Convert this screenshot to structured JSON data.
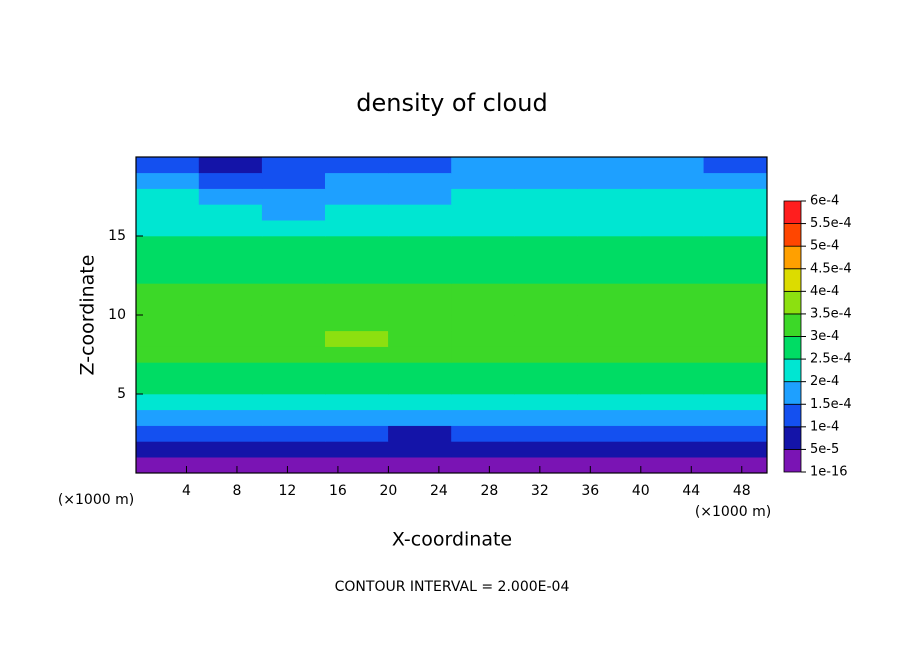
{
  "chart_data": {
    "type": "contour",
    "title": "density of cloud",
    "x_label": "X-coordinate",
    "y_label": "Z-coordinate",
    "y_unit_label": "(×1000 m)",
    "x_unit_label": "(×1000 m)",
    "footer": "CONTOUR INTERVAL = 2.000E-04",
    "xlim": [
      0,
      50
    ],
    "ylim": [
      0,
      20
    ],
    "xticks": [
      4,
      8,
      12,
      16,
      20,
      24,
      28,
      32,
      36,
      40,
      44,
      48
    ],
    "yticks": [
      5,
      10,
      15
    ],
    "x": [
      2.5,
      7.5,
      12.5,
      17.5,
      22.5,
      27.5,
      32.5,
      37.5,
      42.5,
      47.5
    ],
    "y": [
      0.5,
      1.5,
      2.5,
      3.5,
      4.5,
      5.5,
      6.5,
      7.5,
      8.5,
      9.5,
      10.5,
      11.5,
      12.5,
      13.5,
      14.5,
      15.5,
      16.5,
      17.5,
      18.5,
      19.5
    ],
    "z": [
      [
        3e-05,
        3e-05,
        3e-05,
        3e-05,
        3e-05,
        3e-05,
        3e-05,
        3e-05,
        3e-05,
        3e-05
      ],
      [
        7e-05,
        7e-05,
        7e-05,
        7e-05,
        7e-05,
        7e-05,
        7e-05,
        7e-05,
        7e-05,
        7e-05
      ],
      [
        0.00012,
        0.00012,
        0.00011,
        0.0001,
        9e-05,
        0.00011,
        0.00011,
        0.00012,
        0.00011,
        0.00012
      ],
      [
        0.00019,
        0.00018,
        0.00017,
        0.00016,
        0.00017,
        0.00017,
        0.00017,
        0.00018,
        0.00019,
        0.00019
      ],
      [
        0.00023,
        0.00023,
        0.00023,
        0.00023,
        0.00023,
        0.00023,
        0.00023,
        0.00023,
        0.00023,
        0.00023
      ],
      [
        0.00026,
        0.00026,
        0.00026,
        0.00026,
        0.00026,
        0.00026,
        0.00026,
        0.00026,
        0.00026,
        0.00026
      ],
      [
        0.00028,
        0.00028,
        0.00028,
        0.00028,
        0.00028,
        0.00028,
        0.00028,
        0.00028,
        0.00028,
        0.00028
      ],
      [
        0.0003,
        0.0003,
        0.00032,
        0.00033,
        0.00031,
        0.0003,
        0.0003,
        0.0003,
        0.00031,
        0.00031
      ],
      [
        0.00032,
        0.00033,
        0.00034,
        0.00035,
        0.00032,
        0.00031,
        0.00031,
        0.00031,
        0.00032,
        0.00032
      ],
      [
        0.00031,
        0.00032,
        0.00034,
        0.00034,
        0.00032,
        0.00031,
        0.00031,
        0.00031,
        0.00031,
        0.00031
      ],
      [
        0.00031,
        0.00031,
        0.00032,
        0.00032,
        0.00031,
        0.0003,
        0.0003,
        0.0003,
        0.0003,
        0.0003
      ],
      [
        0.0003,
        0.0003,
        0.0003,
        0.0003,
        0.0003,
        0.0003,
        0.0003,
        0.0003,
        0.0003,
        0.0003
      ],
      [
        0.00029,
        0.00029,
        0.00029,
        0.00029,
        0.00029,
        0.00029,
        0.00029,
        0.00029,
        0.00029,
        0.00029
      ],
      [
        0.00027,
        0.00027,
        0.00027,
        0.00027,
        0.00027,
        0.00027,
        0.00027,
        0.00027,
        0.00027,
        0.00027
      ],
      [
        0.00026,
        0.00025,
        0.00025,
        0.00026,
        0.00026,
        0.00026,
        0.00026,
        0.00026,
        0.00026,
        0.00026
      ],
      [
        0.00024,
        0.00023,
        0.00022,
        0.00023,
        0.00024,
        0.00024,
        0.00024,
        0.00024,
        0.00024,
        0.00024
      ],
      [
        0.00022,
        0.0002,
        0.00019,
        0.00021,
        0.00022,
        0.00022,
        0.00022,
        0.00023,
        0.00023,
        0.00023
      ],
      [
        0.0002,
        0.00018,
        0.00016,
        0.00018,
        0.00019,
        0.0002,
        0.00021,
        0.00021,
        0.00021,
        0.00021
      ],
      [
        0.00017,
        0.00014,
        0.00013,
        0.00015,
        0.00016,
        0.00017,
        0.00018,
        0.00018,
        0.00018,
        0.00018
      ],
      [
        0.00012,
        8e-05,
        0.0001,
        0.00012,
        0.00014,
        0.00015,
        0.00015,
        0.00015,
        0.00015,
        0.00014
      ]
    ],
    "colorbar": {
      "ticks": [
        {
          "value": 1e-16,
          "label": "1e-16"
        },
        {
          "value": 5e-05,
          "label": "5e-5"
        },
        {
          "value": 0.0001,
          "label": "1e-4"
        },
        {
          "value": 0.00015,
          "label": "1.5e-4"
        },
        {
          "value": 0.0002,
          "label": "2e-4"
        },
        {
          "value": 0.00025,
          "label": "2.5e-4"
        },
        {
          "value": 0.0003,
          "label": "3e-4"
        },
        {
          "value": 0.00035,
          "label": "3.5e-4"
        },
        {
          "value": 0.0004,
          "label": "4e-4"
        },
        {
          "value": 0.00045,
          "label": "4.5e-4"
        },
        {
          "value": 0.0005,
          "label": "5e-4"
        },
        {
          "value": 0.00055,
          "label": "5.5e-4"
        },
        {
          "value": 0.0006,
          "label": "6e-4"
        }
      ],
      "colors": [
        "#7a14b4",
        "#1414a8",
        "#1450f0",
        "#1ea0ff",
        "#00e6d2",
        "#00dc64",
        "#3cd828",
        "#8ce010",
        "#dcdc00",
        "#ffa000",
        "#ff4600",
        "#ff1e1e"
      ]
    }
  }
}
